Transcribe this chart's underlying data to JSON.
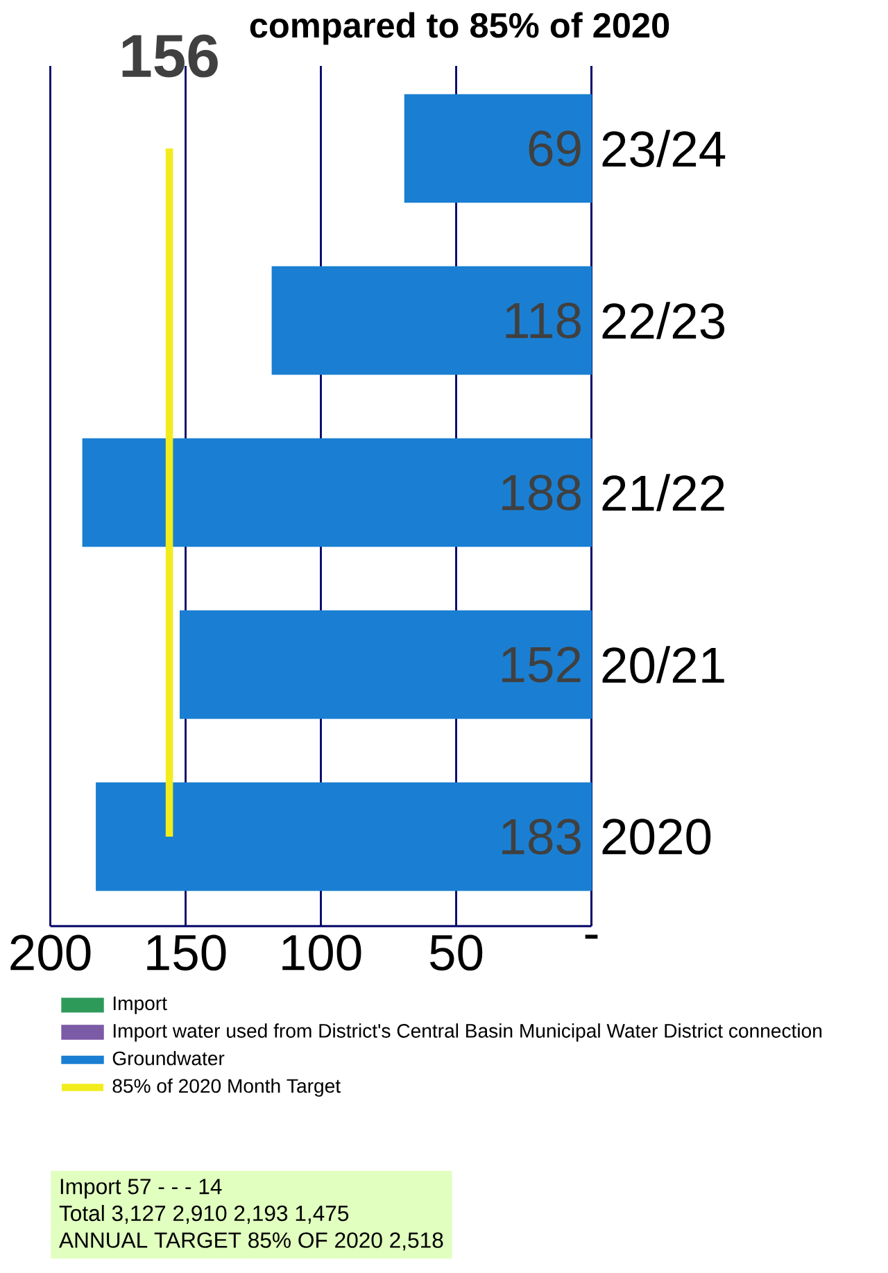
{
  "chart_data": {
    "type": "bar",
    "orientation": "horizontal",
    "title": "compared to 85% of 2020",
    "categories": [
      "23/24",
      "22/23",
      "21/22",
      "20/21",
      "2020"
    ],
    "series": [
      {
        "name": "Import",
        "color": "#2e9a5a",
        "values": [
          null,
          null,
          null,
          null,
          null
        ]
      },
      {
        "name": "Import water used from District's Central Basin Municipal Water District connection",
        "color": "#7b5aa6",
        "values": [
          null,
          null,
          null,
          null,
          null
        ]
      },
      {
        "name": "Groundwater",
        "color": "#1a7fd2",
        "values": [
          69,
          118,
          188,
          152,
          183
        ]
      },
      {
        "name": "85% of 2020 Month Target",
        "type": "line",
        "color": "#f2ec1c",
        "values": [
          156,
          156,
          156,
          156,
          156
        ],
        "value_labels": [
          "156",
          null,
          null,
          null,
          null
        ]
      }
    ],
    "data_labels": true,
    "xlim": [
      200,
      0
    ],
    "xticks": [
      200,
      150,
      100,
      50,
      {
        "value": 0,
        "label": "-"
      }
    ],
    "grid": "x",
    "legend": "bottom",
    "annotations": [
      "Import  57  -  -  -  14",
      "Total  3,127  2,910  2,193  1,475",
      "ANNUAL TARGET 85% OF 2020  2,518"
    ]
  }
}
